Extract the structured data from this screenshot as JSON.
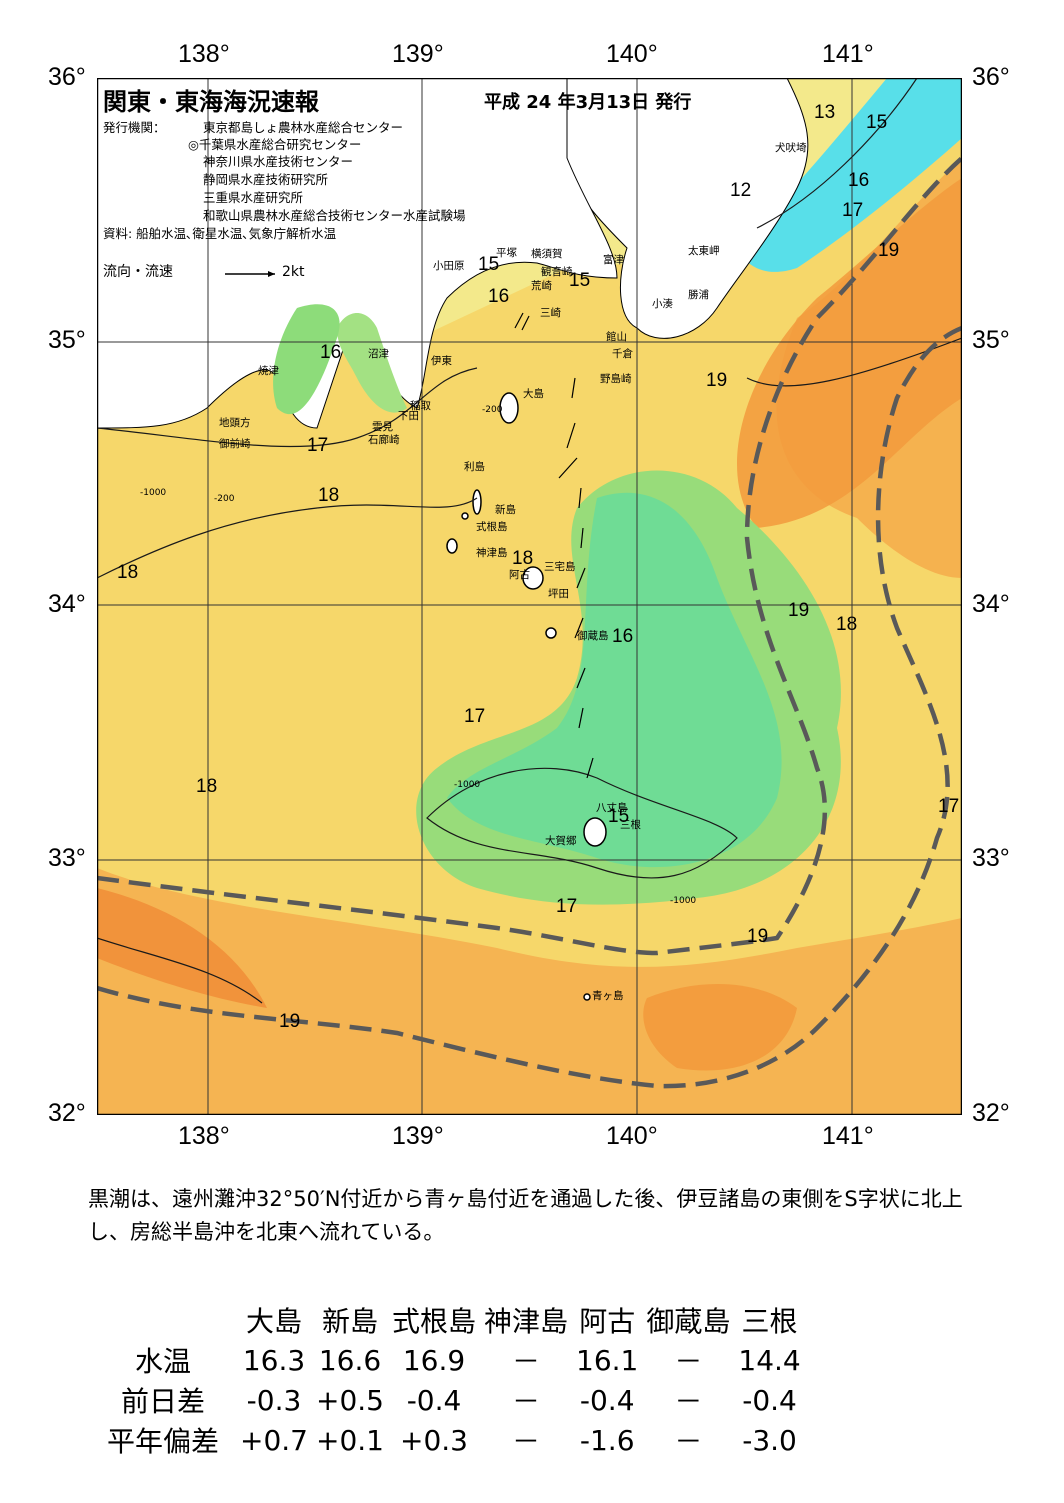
{
  "map": {
    "lon_labels": [
      "138°",
      "139°",
      "140°",
      "141°"
    ],
    "lat_labels_left": [
      "36°",
      "35°",
      "34°",
      "33°",
      "32°"
    ],
    "lat_labels_right": [
      "36°",
      "35°",
      "34°",
      "33°",
      "32°"
    ],
    "colors": {
      "warm": "#f5a94a",
      "mid": "#f5cf63",
      "yellow": "#f5ea84",
      "green": "#93e07a",
      "cyan": "#5de1ed",
      "land": "#ffffff",
      "kuroshio_axis": "#595959"
    }
  },
  "header": {
    "title": "関東・東海海況速報",
    "issue_date": "平成 24 年3月13日 発行",
    "issuers_label": "発行機関：",
    "issuers": [
      "東京都島しょ農林水産総合センター",
      "◎千葉県水産総合研究センター",
      "神奈川県水産技術センター",
      "静岡県水産技術研究所",
      "三重県水産研究所",
      "和歌山県農林水産総合技術センター水産試験場"
    ],
    "source": "資料: 船舶水温､衛星水温､気象庁解析水温",
    "flow_legend": "流向・流速",
    "flow_scale": "2kt"
  },
  "place_names": [
    "犬吠埼",
    "太東岬",
    "勝浦",
    "小湊",
    "富津",
    "横須賀",
    "観音崎",
    "平塚",
    "小田原",
    "荒崎",
    "三崎",
    "館山",
    "千倉",
    "野島崎",
    "沼津",
    "伊東",
    "焼津",
    "稲取",
    "下田",
    "雲見",
    "石廊崎",
    "地頭方",
    "御前崎",
    "大島",
    "利島",
    "新島",
    "式根島",
    "神津島",
    "阿古",
    "三宅島",
    "坪田",
    "御蔵島",
    "八丈島",
    "三根",
    "大賀郷",
    "青ヶ島"
  ],
  "temp_labels": [
    "12",
    "13",
    "15",
    "16",
    "17",
    "18",
    "19"
  ],
  "depth_labels": [
    "-200",
    "-1000"
  ],
  "summary": "黒潮は、遠州灘沖32°50′N付近から青ヶ島付近を通過した後、伊豆諸島の東側をS字状に北上し、房総半島沖を北東へ流れている。",
  "observations": {
    "stations": [
      "大島",
      "新島",
      "式根島",
      "神津島",
      "阿古",
      "御蔵島",
      "三根"
    ],
    "rows": [
      {
        "label": "水温",
        "values": [
          "16.3",
          "16.6",
          "16.9",
          "－",
          "16.1",
          "－",
          "14.4"
        ]
      },
      {
        "label": "前日差",
        "values": [
          "-0.3",
          "+0.5",
          "-0.4",
          "－",
          "-0.4",
          "－",
          "-0.4"
        ]
      },
      {
        "label": "平年偏差",
        "values": [
          "+0.7",
          "+0.1",
          "+0.3",
          "－",
          "-1.6",
          "－",
          "-3.0"
        ]
      }
    ]
  }
}
